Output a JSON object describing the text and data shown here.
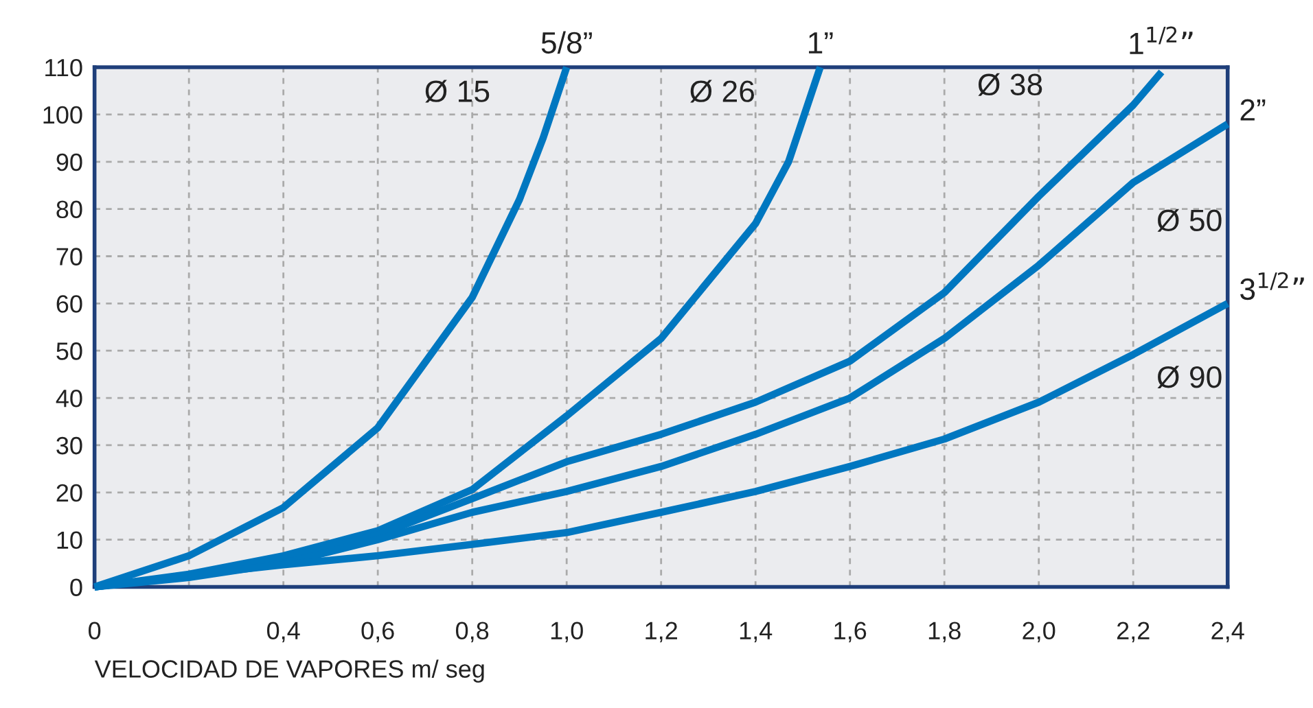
{
  "chart_data": {
    "type": "line",
    "xlabel": "VELOCIDAD DE VAPORES m/ seg",
    "xlim": [
      0,
      2.4
    ],
    "ylim": [
      0,
      110
    ],
    "xticks": [
      0,
      {
        "value": 0.2,
        "label": null
      },
      {
        "value": 0.4,
        "label": "0,4"
      },
      {
        "value": 0.6,
        "label": "0,6"
      },
      {
        "value": 0.8,
        "label": "0,8"
      },
      {
        "value": 1.0,
        "label": "1,0"
      },
      {
        "value": 1.2,
        "label": "1,2"
      },
      {
        "value": 1.4,
        "label": "1,4"
      },
      {
        "value": 1.6,
        "label": "1,6"
      },
      {
        "value": 1.8,
        "label": "1,8"
      },
      {
        "value": 2.0,
        "label": "2,0"
      },
      {
        "value": 2.2,
        "label": "2,2"
      },
      {
        "value": 2.4,
        "label": "2,4"
      }
    ],
    "yticks": [
      0,
      10,
      20,
      30,
      40,
      50,
      60,
      70,
      80,
      90,
      100,
      110
    ],
    "grid": true,
    "marker": "none",
    "line_style": "solid",
    "legend": false,
    "series": [
      {
        "name": "Ø 15",
        "color": "#0077c0",
        "x": [
          0,
          0.2,
          0.4,
          0.6,
          0.8,
          0.9,
          0.95,
          1.0
        ],
        "values": [
          0,
          6.6,
          16.8,
          33.7,
          61.3,
          82,
          95,
          110
        ]
      },
      {
        "name": "Ø 26",
        "color": "#0077c0",
        "x": [
          0,
          0.2,
          0.4,
          0.6,
          0.8,
          1.0,
          1.2,
          1.4,
          1.47,
          1.537
        ],
        "values": [
          0,
          2.7,
          6.6,
          11.9,
          20.6,
          36.2,
          52.6,
          76.9,
          90,
          110
        ]
      },
      {
        "name": "Ø 38",
        "color": "#0077c0",
        "x": [
          0,
          0.2,
          0.4,
          0.6,
          0.8,
          1.0,
          1.2,
          1.4,
          1.6,
          1.8,
          2.0,
          2.2,
          2.26
        ],
        "values": [
          0,
          2.5,
          6,
          11,
          18.7,
          26.5,
          32.3,
          39.1,
          47.8,
          62.3,
          82.7,
          102,
          109
        ]
      },
      {
        "name": "Ø 50",
        "color": "#0077c0",
        "x": [
          0,
          0.2,
          0.4,
          0.6,
          0.8,
          1.0,
          1.2,
          1.4,
          1.6,
          1.8,
          2.0,
          2.2,
          2.4
        ],
        "values": [
          0,
          2,
          5,
          10,
          15.8,
          20.2,
          25.5,
          32.3,
          40,
          52.6,
          68.1,
          85.6,
          98
        ]
      },
      {
        "name": "Ø 90",
        "color": "#0077c0",
        "x": [
          0,
          0.2,
          0.4,
          0.6,
          0.8,
          1.0,
          1.2,
          1.4,
          1.6,
          1.8,
          2.0,
          2.2,
          2.4
        ],
        "values": [
          0,
          2.5,
          4.7,
          6.6,
          9,
          11.5,
          15.8,
          20.2,
          25.5,
          31.3,
          39.1,
          49.2,
          60
        ]
      }
    ],
    "annotations": [
      {
        "text": "5/8”",
        "x": 1.0,
        "y": 110
      },
      {
        "text": "1”",
        "x": 1.537,
        "y": 110
      },
      {
        "text": "1$^{1/2}$”",
        "x": 2.26,
        "y": 109
      },
      {
        "text": "2”",
        "x": 2.4,
        "y": 98
      },
      {
        "text": "3$^{1/2}$”",
        "x": 2.4,
        "y": 60
      }
    ]
  }
}
